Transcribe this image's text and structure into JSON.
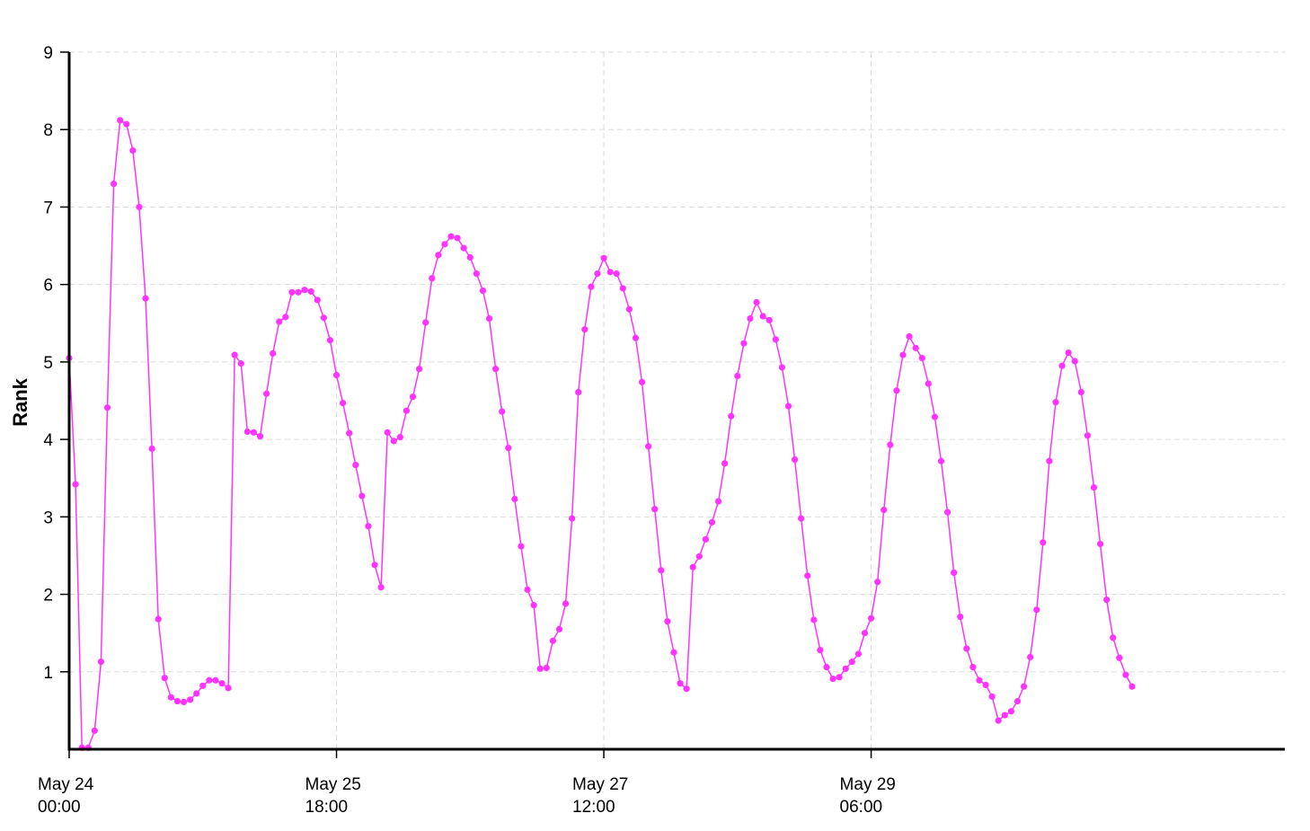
{
  "chart_data": {
    "type": "line",
    "title": "",
    "xlabel": "",
    "ylabel": "Rank",
    "ylim": [
      0,
      9
    ],
    "xlim": [
      "2014-05-24 00:00",
      "2014-05-31 23:00"
    ],
    "grid": true,
    "legend": "none",
    "colors": {
      "series": "#ff33ff",
      "axis": "#000000",
      "grid": "#dddddd"
    },
    "y_ticks": [
      "1",
      "2",
      "3",
      "4",
      "5",
      "6",
      "7",
      "8",
      "9"
    ],
    "x_ticks": [
      {
        "at": "2014-05-24 00:00",
        "line1": "May 24",
        "line2": "00:00"
      },
      {
        "at": "2014-05-25 18:00",
        "line1": "May 25",
        "line2": "18:00"
      },
      {
        "at": "2014-05-27 12:00",
        "line1": "May 27",
        "line2": "12:00"
      },
      {
        "at": "2014-05-29 06:00",
        "line1": "May 29",
        "line2": "06:00"
      }
    ],
    "series": [
      {
        "start": "2014-05-24 00:00",
        "interval_hours": 1,
        "values": [
          5.05,
          3.42,
          0.02,
          0.02,
          0.24,
          1.13,
          4.41,
          7.3,
          8.12,
          8.07,
          7.73,
          7.0,
          5.82,
          3.88,
          1.68,
          0.92,
          0.67,
          0.62,
          0.61,
          0.64,
          0.72,
          0.82,
          0.89,
          0.89,
          0.85,
          0.79,
          5.09,
          4.98,
          4.1,
          4.09,
          4.04,
          4.59,
          5.11,
          5.52,
          5.58,
          5.9,
          5.9,
          5.93,
          5.91,
          5.8,
          5.57,
          5.28,
          4.83,
          4.47,
          4.08,
          3.67,
          3.27,
          2.88,
          2.38,
          2.09,
          4.09,
          3.98,
          4.03,
          4.37,
          4.55,
          4.91,
          5.51,
          6.08,
          6.38,
          6.52,
          6.62,
          6.6,
          6.47,
          6.35,
          6.14,
          5.92,
          5.56,
          4.91,
          4.36,
          3.89,
          3.23,
          2.62,
          2.06,
          1.86,
          1.04,
          1.05,
          1.4,
          1.55,
          1.88,
          2.98,
          4.61,
          5.42,
          5.97,
          6.14,
          6.34,
          6.16,
          6.14,
          5.95,
          5.68,
          5.31,
          4.74,
          3.91,
          3.1,
          2.31,
          1.65,
          1.25,
          0.85,
          0.78,
          2.35,
          2.49,
          2.71,
          2.93,
          3.2,
          3.69,
          4.3,
          4.82,
          5.24,
          5.56,
          5.77,
          5.59,
          5.54,
          5.29,
          4.93,
          4.43,
          3.74,
          2.98,
          2.24,
          1.67,
          1.28,
          1.06,
          0.91,
          0.93,
          1.04,
          1.13,
          1.23,
          1.5,
          1.69,
          2.16,
          3.09,
          3.93,
          4.63,
          5.09,
          5.33,
          5.18,
          5.05,
          4.72,
          4.29,
          3.72,
          3.06,
          2.28,
          1.71,
          1.3,
          1.06,
          0.89,
          0.83,
          0.68,
          0.37,
          0.44,
          0.49,
          0.62,
          0.81,
          1.19,
          1.8,
          2.67,
          3.72,
          4.48,
          4.95,
          5.12,
          5.01,
          4.61,
          4.05,
          3.38,
          2.65,
          1.93,
          1.44,
          1.18,
          0.96,
          0.81
        ]
      }
    ]
  }
}
